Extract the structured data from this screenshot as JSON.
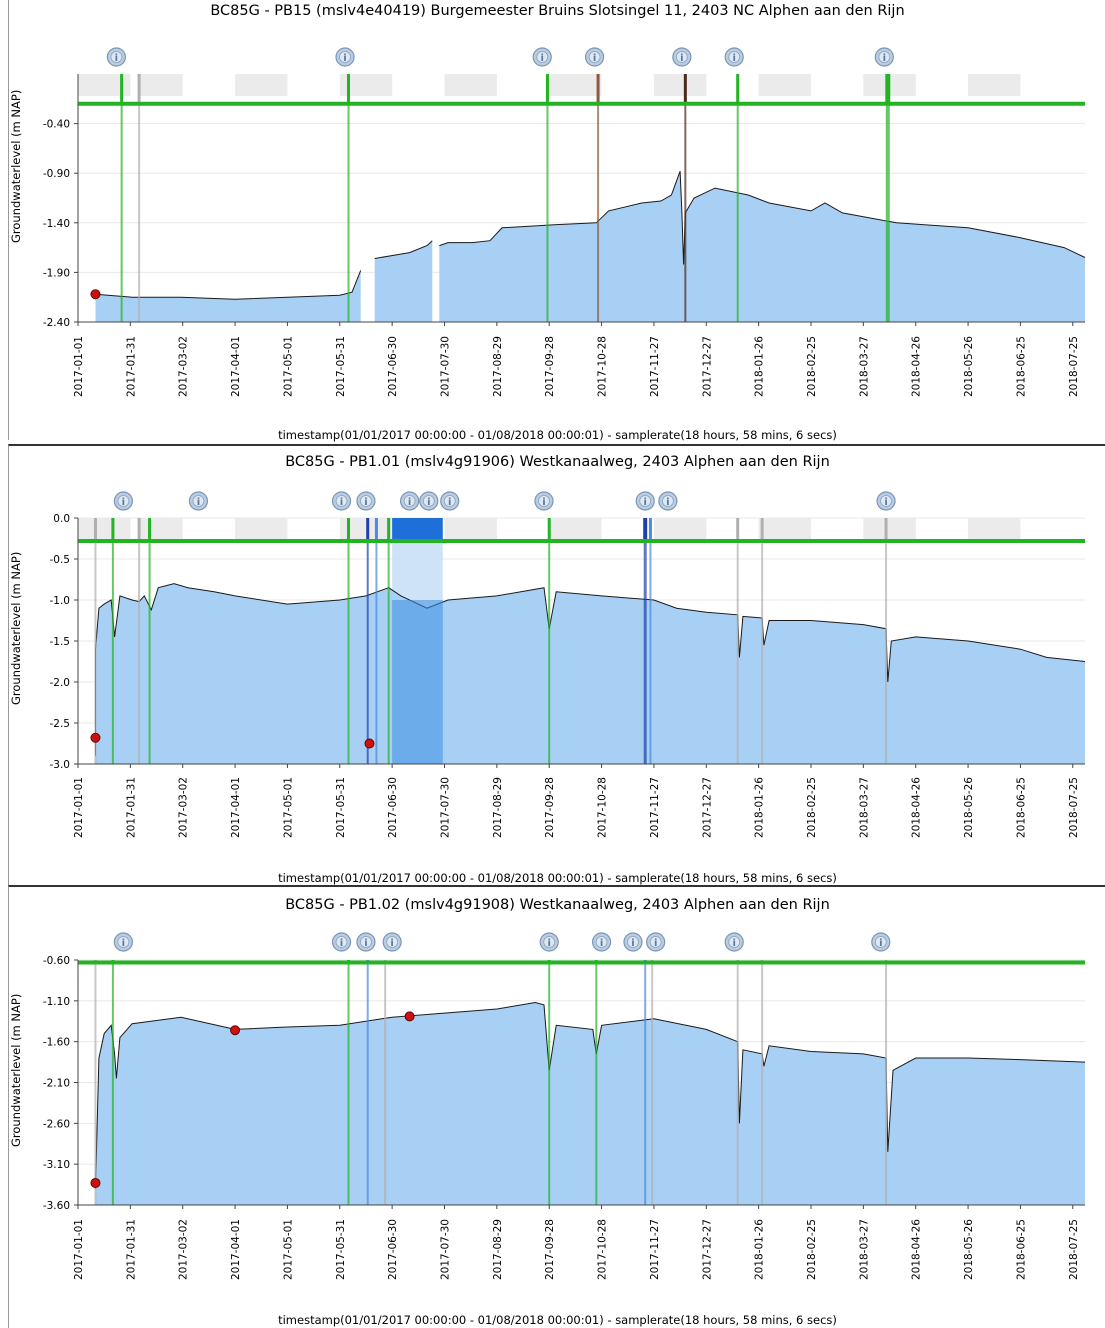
{
  "chart_data": [
    {
      "type": "area",
      "title": "BC85G - PB15 (mslv4e40419) Burgemeester Bruins Slotsingel 11, 2403 NC Alphen aan den Rijn",
      "ylabel": "Groundwaterlevel (m NAP)",
      "xlabel": "timestamp(01/01/2017 00:00:00 - 01/08/2018 00:00:01) - samplerate(18 hours, 58 mins, 6 secs)",
      "x_ticks": [
        "2017-01-01",
        "2017-01-31",
        "2017-03-02",
        "2017-04-01",
        "2017-05-01",
        "2017-05-31",
        "2017-06-30",
        "2017-07-30",
        "2017-08-29",
        "2017-09-28",
        "2017-10-28",
        "2017-11-27",
        "2017-12-27",
        "2018-01-26",
        "2018-02-25",
        "2018-03-27",
        "2018-04-26",
        "2018-05-26",
        "2018-06-25",
        "2018-07-25"
      ],
      "y_ticks": [
        "-0.40",
        "-0.90",
        "-1.40",
        "-1.90",
        "-2.40"
      ],
      "xlim": [
        "2017-01-01",
        "2018-08-01"
      ],
      "ylim": [
        -2.4,
        0.1
      ],
      "reference_line": {
        "value": -0.2,
        "color": "#22b422"
      },
      "fill_color": "#a8d0f5",
      "series": [
        {
          "values": [
            [
              "2017-01-11",
              -2.12
            ],
            [
              "2017-02-01",
              -2.15
            ],
            [
              "2017-03-01",
              -2.15
            ],
            [
              "2017-04-01",
              -2.17
            ],
            [
              "2017-05-01",
              -2.15
            ],
            [
              "2017-05-31",
              -2.13
            ],
            [
              "2017-06-07",
              -2.1
            ],
            [
              "2017-06-12",
              -1.88
            ],
            [
              "2017-06-12",
              null
            ],
            [
              "2017-06-20",
              -1.76
            ],
            [
              "2017-07-10",
              -1.7
            ],
            [
              "2017-07-20",
              -1.63
            ],
            [
              "2017-07-23",
              -1.58
            ],
            [
              "2017-07-23",
              null
            ],
            [
              "2017-07-27",
              -1.63
            ],
            [
              "2017-08-01",
              -1.6
            ],
            [
              "2017-08-15",
              -1.6
            ],
            [
              "2017-08-25",
              -1.58
            ],
            [
              "2017-09-01",
              -1.45
            ],
            [
              "2017-10-01",
              -1.42
            ],
            [
              "2017-10-25",
              -1.4
            ],
            [
              "2017-11-01",
              -1.28
            ],
            [
              "2017-11-20",
              -1.2
            ],
            [
              "2017-12-01",
              -1.18
            ],
            [
              "2017-12-07",
              -1.12
            ],
            [
              "2017-12-12",
              -0.88
            ],
            [
              "2017-12-13",
              -1.3
            ],
            [
              "2017-12-14",
              -1.82
            ],
            [
              "2017-12-15",
              -1.3
            ],
            [
              "2017-12-20",
              -1.15
            ],
            [
              "2018-01-01",
              -1.05
            ],
            [
              "2018-01-20",
              -1.12
            ],
            [
              "2018-02-01",
              -1.2
            ],
            [
              "2018-02-25",
              -1.28
            ],
            [
              "2018-03-05",
              -1.2
            ],
            [
              "2018-03-15",
              -1.3
            ],
            [
              "2018-03-27",
              -1.34
            ],
            [
              "2018-04-15",
              -1.4
            ],
            [
              "2018-05-01",
              -1.42
            ],
            [
              "2018-05-26",
              -1.45
            ],
            [
              "2018-06-25",
              -1.55
            ],
            [
              "2018-07-20",
              -1.65
            ],
            [
              "2018-08-01",
              -1.75
            ]
          ]
        }
      ],
      "markers": [
        {
          "x": "2017-01-11",
          "y": -2.12,
          "color": "#cc1111"
        }
      ],
      "vlines": [
        {
          "x": "2017-01-26",
          "color": "#22b422",
          "w": 2
        },
        {
          "x": "2017-02-05",
          "color": "#b0b0b0",
          "w": 2
        },
        {
          "x": "2017-06-05",
          "color": "#22b422",
          "w": 2
        },
        {
          "x": "2017-09-27",
          "color": "#22b422",
          "w": 2
        },
        {
          "x": "2017-10-26",
          "color": "#8a5a3a",
          "w": 2
        },
        {
          "x": "2017-12-15",
          "color": "#4a2a1a",
          "w": 2
        },
        {
          "x": "2018-01-14",
          "color": "#22b422",
          "w": 2
        },
        {
          "x": "2018-04-10",
          "color": "#22b422",
          "w": 4
        }
      ],
      "info_icons": [
        "2017-01-23",
        "2017-06-03",
        "2017-09-24",
        "2017-10-24",
        "2017-12-13",
        "2018-01-12",
        "2018-04-08"
      ],
      "grey_bands": [
        [
          "2017-01-01",
          "2017-01-31"
        ],
        [
          "2017-02-05",
          "2017-03-02"
        ],
        [
          "2017-04-01",
          "2017-05-01"
        ],
        [
          "2017-05-31",
          "2017-06-30"
        ],
        [
          "2017-07-30",
          "2017-08-29"
        ],
        [
          "2017-09-28",
          "2017-10-28"
        ],
        [
          "2017-11-27",
          "2017-12-27"
        ],
        [
          "2018-01-26",
          "2018-02-25"
        ],
        [
          "2018-03-27",
          "2018-04-26"
        ],
        [
          "2018-05-26",
          "2018-06-25"
        ]
      ]
    },
    {
      "type": "area",
      "title": "BC85G - PB1.01 (mslv4g91906) Westkanaalweg, 2403 Alphen aan den Rijn",
      "ylabel": "Groundwaterlevel (m NAP)",
      "xlabel": "timestamp(01/01/2017 00:00:00 - 01/08/2018 00:00:01) - samplerate(18 hours, 58 mins, 6 secs)",
      "x_ticks": [
        "2017-01-01",
        "2017-01-31",
        "2017-03-02",
        "2017-04-01",
        "2017-05-01",
        "2017-05-31",
        "2017-06-30",
        "2017-07-30",
        "2017-08-29",
        "2017-09-28",
        "2017-10-28",
        "2017-11-27",
        "2017-12-27",
        "2018-01-26",
        "2018-02-25",
        "2018-03-27",
        "2018-04-26",
        "2018-05-26",
        "2018-06-25",
        "2018-07-25"
      ],
      "y_ticks": [
        "0.0",
        "-0.5",
        "-1.0",
        "-1.5",
        "-2.0",
        "-2.5",
        "-3.0"
      ],
      "xlim": [
        "2017-01-01",
        "2018-08-01"
      ],
      "ylim": [
        -3.0,
        0.0
      ],
      "reference_line": {
        "value": -0.28,
        "color": "#22b422"
      },
      "fill_color": "#a8d0f5",
      "highlight_band": {
        "from": "2017-06-30",
        "to": "2017-07-29",
        "fill": "#3a8ee0",
        "top_fill": "#1e6fd8"
      },
      "series": [
        {
          "values": [
            [
              "2017-01-11",
              -2.9
            ],
            [
              "2017-01-11",
              -1.6
            ],
            [
              "2017-01-13",
              -1.1
            ],
            [
              "2017-01-16",
              -1.05
            ],
            [
              "2017-01-20",
              -1.0
            ],
            [
              "2017-01-22",
              -1.45
            ],
            [
              "2017-01-25",
              -0.95
            ],
            [
              "2017-02-01",
              -1.0
            ],
            [
              "2017-02-05",
              -1.02
            ],
            [
              "2017-02-08",
              -0.95
            ],
            [
              "2017-02-12",
              -1.12
            ],
            [
              "2017-02-16",
              -0.85
            ],
            [
              "2017-02-25",
              -0.8
            ],
            [
              "2017-03-05",
              -0.85
            ],
            [
              "2017-03-20",
              -0.9
            ],
            [
              "2017-04-01",
              -0.95
            ],
            [
              "2017-05-01",
              -1.05
            ],
            [
              "2017-05-31",
              -1.0
            ],
            [
              "2017-06-15",
              -0.95
            ],
            [
              "2017-06-28",
              -0.85
            ],
            [
              "2017-07-05",
              -0.95
            ],
            [
              "2017-07-20",
              -1.1
            ],
            [
              "2017-08-01",
              -1.0
            ],
            [
              "2017-08-29",
              -0.95
            ],
            [
              "2017-09-25",
              -0.85
            ],
            [
              "2017-09-28",
              -1.35
            ],
            [
              "2017-10-02",
              -0.9
            ],
            [
              "2017-10-28",
              -0.95
            ],
            [
              "2017-11-27",
              -1.0
            ],
            [
              "2017-12-10",
              -1.1
            ],
            [
              "2017-12-27",
              -1.15
            ],
            [
              "2018-01-14",
              -1.18
            ],
            [
              "2018-01-15",
              -1.7
            ],
            [
              "2018-01-17",
              -1.2
            ],
            [
              "2018-01-28",
              -1.22
            ],
            [
              "2018-01-29",
              -1.55
            ],
            [
              "2018-02-01",
              -1.25
            ],
            [
              "2018-02-25",
              -1.25
            ],
            [
              "2018-03-27",
              -1.3
            ],
            [
              "2018-04-09",
              -1.35
            ],
            [
              "2018-04-10",
              -2.0
            ],
            [
              "2018-04-12",
              -1.5
            ],
            [
              "2018-04-26",
              -1.45
            ],
            [
              "2018-05-26",
              -1.5
            ],
            [
              "2018-06-25",
              -1.6
            ],
            [
              "2018-07-10",
              -1.7
            ],
            [
              "2018-08-01",
              -1.75
            ]
          ]
        }
      ],
      "markers": [
        {
          "x": "2017-01-11",
          "y": -2.68,
          "color": "#cc1111"
        },
        {
          "x": "2017-06-17",
          "y": -2.75,
          "color": "#cc1111"
        }
      ],
      "vlines": [
        {
          "x": "2017-01-11",
          "color": "#b0b0b0",
          "w": 2
        },
        {
          "x": "2017-01-21",
          "color": "#22b422",
          "w": 2
        },
        {
          "x": "2017-02-05",
          "color": "#b0b0b0",
          "w": 2
        },
        {
          "x": "2017-02-11",
          "color": "#22b422",
          "w": 2
        },
        {
          "x": "2017-06-05",
          "color": "#22b422",
          "w": 2
        },
        {
          "x": "2017-06-16",
          "color": "#1e40a8",
          "w": 2
        },
        {
          "x": "2017-06-21",
          "color": "#4a8ae0",
          "w": 2
        },
        {
          "x": "2017-06-28",
          "color": "#22b422",
          "w": 2
        },
        {
          "x": "2017-09-28",
          "color": "#22b422",
          "w": 2
        },
        {
          "x": "2017-11-22",
          "color": "#1e40a8",
          "w": 3
        },
        {
          "x": "2017-11-25",
          "color": "#4a8ae0",
          "w": 2
        },
        {
          "x": "2018-01-14",
          "color": "#b0b0b0",
          "w": 2
        },
        {
          "x": "2018-01-28",
          "color": "#b0b0b0",
          "w": 2
        },
        {
          "x": "2018-04-09",
          "color": "#b0b0b0",
          "w": 2
        }
      ],
      "info_icons": [
        "2017-01-27",
        "2017-03-11",
        "2017-06-01",
        "2017-06-15",
        "2017-07-10",
        "2017-07-21",
        "2017-08-02",
        "2017-09-25",
        "2017-11-22",
        "2017-12-05",
        "2018-04-09"
      ],
      "grey_bands": [
        [
          "2017-01-01",
          "2017-01-31"
        ],
        [
          "2017-02-05",
          "2017-03-02"
        ],
        [
          "2017-04-01",
          "2017-05-01"
        ],
        [
          "2017-05-31",
          "2017-06-30"
        ],
        [
          "2017-07-30",
          "2017-08-29"
        ],
        [
          "2017-09-28",
          "2017-10-28"
        ],
        [
          "2017-11-27",
          "2017-12-27"
        ],
        [
          "2018-01-26",
          "2018-02-25"
        ],
        [
          "2018-03-27",
          "2018-04-26"
        ],
        [
          "2018-05-26",
          "2018-06-25"
        ]
      ]
    },
    {
      "type": "area",
      "title": "BC85G - PB1.02 (mslv4g91908) Westkanaalweg, 2403 Alphen aan den Rijn",
      "ylabel": "Groundwaterlevel (m NAP)",
      "xlabel": "timestamp(01/01/2017 00:00:00 - 01/08/2018 00:00:01) - samplerate(18 hours, 58 mins, 6 secs)",
      "x_ticks": [
        "2017-01-01",
        "2017-01-31",
        "2017-03-02",
        "2017-04-01",
        "2017-05-01",
        "2017-05-31",
        "2017-06-30",
        "2017-07-30",
        "2017-08-29",
        "2017-09-28",
        "2017-10-28",
        "2017-11-27",
        "2017-12-27",
        "2018-01-26",
        "2018-02-25",
        "2018-03-27",
        "2018-04-26",
        "2018-05-26",
        "2018-06-25",
        "2018-07-25"
      ],
      "y_ticks": [
        "-0.60",
        "-1.10",
        "-1.60",
        "-2.10",
        "-2.60",
        "-3.10",
        "-3.60"
      ],
      "xlim": [
        "2017-01-01",
        "2018-08-01"
      ],
      "ylim": [
        -3.6,
        -0.6
      ],
      "reference_line": {
        "value": -0.63,
        "color": "#22b422"
      },
      "fill_color": "#a8d0f5",
      "series": [
        {
          "values": [
            [
              "2017-01-11",
              -3.4
            ],
            [
              "2017-01-13",
              -1.8
            ],
            [
              "2017-01-16",
              -1.5
            ],
            [
              "2017-01-20",
              -1.4
            ],
            [
              "2017-01-22",
              -1.75
            ],
            [
              "2017-01-23",
              -2.05
            ],
            [
              "2017-01-25",
              -1.55
            ],
            [
              "2017-02-01",
              -1.38
            ],
            [
              "2017-03-01",
              -1.3
            ],
            [
              "2017-04-01",
              -1.45
            ],
            [
              "2017-05-01",
              -1.42
            ],
            [
              "2017-05-31",
              -1.4
            ],
            [
              "2017-06-30",
              -1.3
            ],
            [
              "2017-07-30",
              -1.25
            ],
            [
              "2017-08-29",
              -1.2
            ],
            [
              "2017-09-20",
              -1.12
            ],
            [
              "2017-09-25",
              -1.15
            ],
            [
              "2017-09-28",
              -1.95
            ],
            [
              "2017-10-02",
              -1.4
            ],
            [
              "2017-10-23",
              -1.45
            ],
            [
              "2017-10-25",
              -1.75
            ],
            [
              "2017-10-28",
              -1.4
            ],
            [
              "2017-11-27",
              -1.32
            ],
            [
              "2017-12-27",
              -1.45
            ],
            [
              "2018-01-14",
              -1.6
            ],
            [
              "2018-01-15",
              -2.6
            ],
            [
              "2018-01-17",
              -1.7
            ],
            [
              "2018-01-28",
              -1.75
            ],
            [
              "2018-01-29",
              -1.9
            ],
            [
              "2018-02-01",
              -1.65
            ],
            [
              "2018-02-25",
              -1.72
            ],
            [
              "2018-03-27",
              -1.75
            ],
            [
              "2018-04-09",
              -1.8
            ],
            [
              "2018-04-10",
              -2.95
            ],
            [
              "2018-04-13",
              -1.95
            ],
            [
              "2018-04-26",
              -1.8
            ],
            [
              "2018-05-26",
              -1.8
            ],
            [
              "2018-06-25",
              -1.82
            ],
            [
              "2018-08-01",
              -1.85
            ]
          ]
        }
      ],
      "markers": [
        {
          "x": "2017-01-11",
          "y": -3.33,
          "color": "#cc1111"
        },
        {
          "x": "2017-04-01",
          "y": -1.46,
          "color": "#cc1111"
        },
        {
          "x": "2017-07-10",
          "y": -1.29,
          "color": "#cc1111"
        }
      ],
      "vlines": [
        {
          "x": "2017-01-11",
          "color": "#b0b0b0",
          "w": 2
        },
        {
          "x": "2017-01-21",
          "color": "#22b422",
          "w": 2
        },
        {
          "x": "2017-06-05",
          "color": "#22b422",
          "w": 2
        },
        {
          "x": "2017-06-16",
          "color": "#4a8ae0",
          "w": 2
        },
        {
          "x": "2017-06-26",
          "color": "#b0b0b0",
          "w": 2
        },
        {
          "x": "2017-09-28",
          "color": "#22b422",
          "w": 2
        },
        {
          "x": "2017-10-25",
          "color": "#22b422",
          "w": 2
        },
        {
          "x": "2017-11-22",
          "color": "#4a8ae0",
          "w": 2
        },
        {
          "x": "2017-11-26",
          "color": "#b0b0b0",
          "w": 2
        },
        {
          "x": "2018-01-14",
          "color": "#b0b0b0",
          "w": 2
        },
        {
          "x": "2018-01-28",
          "color": "#b0b0b0",
          "w": 2
        },
        {
          "x": "2018-04-09",
          "color": "#b0b0b0",
          "w": 2
        }
      ],
      "info_icons": [
        "2017-01-27",
        "2017-06-01",
        "2017-06-15",
        "2017-06-30",
        "2017-09-28",
        "2017-10-28",
        "2017-11-15",
        "2017-11-28",
        "2018-01-12",
        "2018-04-06"
      ],
      "grey_bands": []
    }
  ]
}
